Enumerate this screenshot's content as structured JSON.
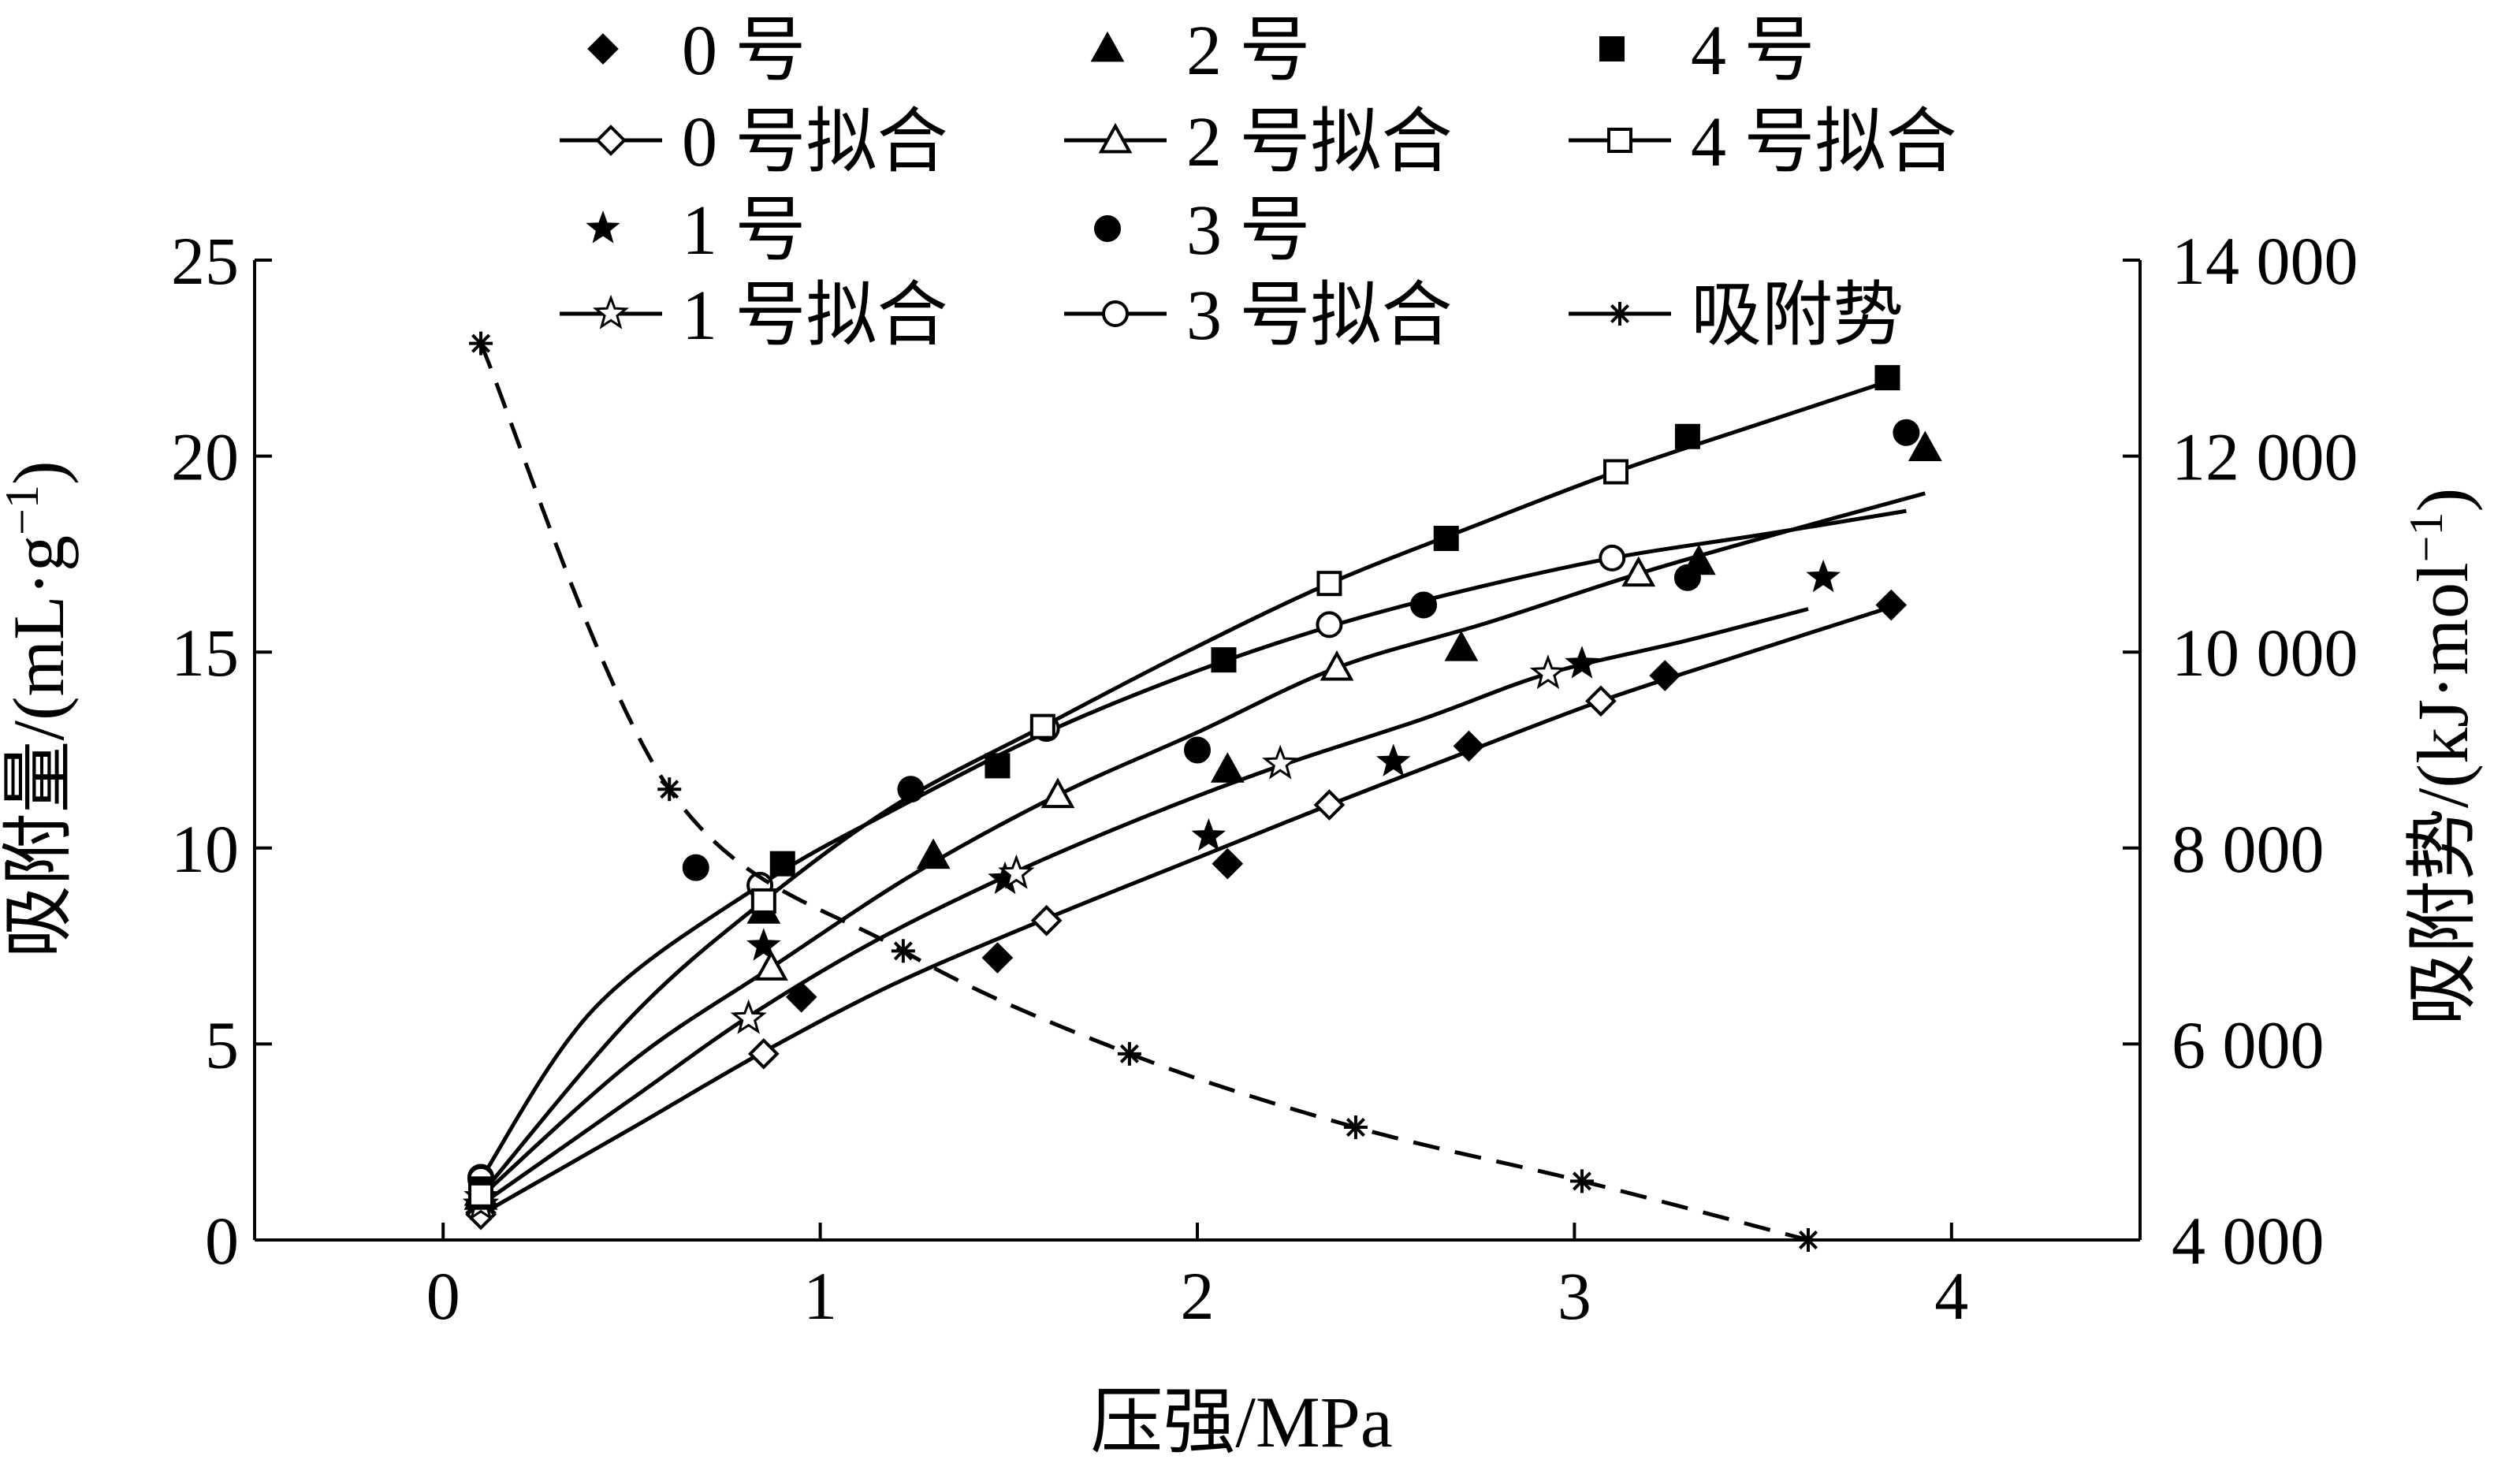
{
  "chart_data": {
    "type": "scatter",
    "xlabel": "压强/MPa",
    "ylabel_left": "吸附量/(mL·g⁻¹)",
    "ylabel_left_base": "吸附量/(mL·g",
    "ylabel_left_sup": "−1",
    "ylabel_left_end": ")",
    "ylabel_right": "吸附势/(kJ·mol⁻¹)",
    "ylabel_right_base": "吸附势/(kJ·mol",
    "ylabel_right_sup": "−1",
    "ylabel_right_end": ")",
    "xlim": [
      -0.5,
      4.5
    ],
    "ylim_left": [
      0,
      25
    ],
    "ylim_right": [
      4000,
      14000
    ],
    "x_ticks": [
      0,
      1,
      2,
      3,
      4
    ],
    "x_tick_labels": [
      "0",
      "1",
      "2",
      "3",
      "4"
    ],
    "y_left_ticks": [
      0,
      5,
      10,
      15,
      20,
      25
    ],
    "y_left_tick_labels": [
      "0",
      "5",
      "10",
      "15",
      "20",
      "25"
    ],
    "y_right_ticks": [
      4000,
      6000,
      8000,
      10000,
      12000,
      14000
    ],
    "y_right_tick_labels": [
      "4 000",
      "6 000",
      "8 000",
      "10 000",
      "12 000",
      "14 000"
    ],
    "grid": false,
    "legend_position": "top",
    "series": [
      {
        "name": "0 号",
        "kind": "points",
        "marker": "diamond-filled",
        "points": [
          [
            0.1,
            0.7
          ],
          [
            0.95,
            6.2
          ],
          [
            1.47,
            7.2
          ],
          [
            2.08,
            9.6
          ],
          [
            2.72,
            12.6
          ],
          [
            3.24,
            14.4
          ],
          [
            3.84,
            16.2
          ]
        ]
      },
      {
        "name": "0 号拟合",
        "kind": "fit",
        "marker": "diamond-open",
        "curve": [
          [
            0.1,
            0.65
          ],
          [
            0.5,
            2.85
          ],
          [
            0.85,
            4.8
          ],
          [
            1.2,
            6.55
          ],
          [
            1.6,
            8.2
          ],
          [
            2.0,
            9.75
          ],
          [
            2.35,
            11.1
          ],
          [
            2.7,
            12.4
          ],
          [
            3.07,
            13.75
          ],
          [
            3.45,
            14.95
          ],
          [
            3.84,
            16.15
          ]
        ],
        "markers": [
          [
            0.1,
            0.65
          ],
          [
            0.85,
            4.75
          ],
          [
            1.6,
            8.15
          ],
          [
            2.35,
            11.1
          ],
          [
            3.07,
            13.75
          ]
        ]
      },
      {
        "name": "1 号",
        "kind": "points",
        "marker": "star-filled",
        "points": [
          [
            0.1,
            1.1
          ],
          [
            0.85,
            7.5
          ],
          [
            1.49,
            9.2
          ],
          [
            2.03,
            10.3
          ],
          [
            2.52,
            12.2
          ],
          [
            3.02,
            14.7
          ],
          [
            3.66,
            16.9
          ]
        ]
      },
      {
        "name": "1 号拟合",
        "kind": "fit",
        "marker": "star-open",
        "curve": [
          [
            0.1,
            0.9
          ],
          [
            0.5,
            3.6
          ],
          [
            0.81,
            5.7
          ],
          [
            1.15,
            7.65
          ],
          [
            1.52,
            9.4
          ],
          [
            1.9,
            10.95
          ],
          [
            2.22,
            12.1
          ],
          [
            2.6,
            13.3
          ],
          [
            2.93,
            14.45
          ],
          [
            3.3,
            15.3
          ],
          [
            3.62,
            16.1
          ]
        ],
        "markers": [
          [
            0.1,
            0.9
          ],
          [
            0.81,
            5.65
          ],
          [
            1.52,
            9.35
          ],
          [
            2.22,
            12.15
          ],
          [
            2.93,
            14.45
          ]
        ]
      },
      {
        "name": "2 号",
        "kind": "points",
        "marker": "triangle-filled",
        "points": [
          [
            0.1,
            1.2
          ],
          [
            0.85,
            8.4
          ],
          [
            1.3,
            9.8
          ],
          [
            2.08,
            12.0
          ],
          [
            2.7,
            15.1
          ],
          [
            3.33,
            17.3
          ],
          [
            3.93,
            20.2
          ]
        ]
      },
      {
        "name": "2 号拟合",
        "kind": "fit",
        "marker": "triangle-open",
        "curve": [
          [
            0.1,
            1.1
          ],
          [
            0.5,
            4.55
          ],
          [
            0.87,
            6.95
          ],
          [
            1.25,
            9.35
          ],
          [
            1.63,
            11.35
          ],
          [
            2.0,
            12.95
          ],
          [
            2.37,
            14.6
          ],
          [
            2.77,
            15.75
          ],
          [
            3.17,
            17.0
          ],
          [
            3.55,
            18.05
          ],
          [
            3.93,
            19.05
          ]
        ],
        "markers": [
          [
            0.1,
            1.1
          ],
          [
            0.87,
            6.95
          ],
          [
            1.63,
            11.35
          ],
          [
            2.37,
            14.6
          ],
          [
            3.17,
            17.0
          ]
        ]
      },
      {
        "name": "3 号",
        "kind": "points",
        "marker": "circle-filled",
        "points": [
          [
            0.1,
            1.6
          ],
          [
            0.67,
            9.5
          ],
          [
            1.24,
            11.5
          ],
          [
            2.0,
            12.5
          ],
          [
            2.6,
            16.2
          ],
          [
            3.3,
            16.9
          ],
          [
            3.88,
            20.6
          ]
        ]
      },
      {
        "name": "3 号拟合",
        "kind": "fit",
        "marker": "circle-open",
        "curve": [
          [
            0.1,
            1.55
          ],
          [
            0.4,
            5.9
          ],
          [
            0.84,
            9.05
          ],
          [
            1.2,
            11.0
          ],
          [
            1.6,
            12.95
          ],
          [
            1.98,
            14.45
          ],
          [
            2.35,
            15.65
          ],
          [
            2.7,
            16.55
          ],
          [
            3.1,
            17.4
          ],
          [
            3.5,
            18.0
          ],
          [
            3.88,
            18.6
          ]
        ],
        "markers": [
          [
            0.1,
            1.55
          ],
          [
            0.84,
            9.05
          ],
          [
            1.6,
            13.05
          ],
          [
            2.35,
            15.7
          ],
          [
            3.1,
            17.4
          ]
        ]
      },
      {
        "name": "4 号",
        "kind": "points",
        "marker": "square-filled",
        "points": [
          [
            0.1,
            1.3
          ],
          [
            0.9,
            9.6
          ],
          [
            1.47,
            12.1
          ],
          [
            2.07,
            14.8
          ],
          [
            2.66,
            17.9
          ],
          [
            3.3,
            20.5
          ],
          [
            3.83,
            22.0
          ]
        ]
      },
      {
        "name": "4 号拟合",
        "kind": "fit",
        "marker": "square-open",
        "curve": [
          [
            0.1,
            1.15
          ],
          [
            0.5,
            5.7
          ],
          [
            0.85,
            8.65
          ],
          [
            1.2,
            11.1
          ],
          [
            1.59,
            13.1
          ],
          [
            1.97,
            15.0
          ],
          [
            2.35,
            16.75
          ],
          [
            2.73,
            18.2
          ],
          [
            3.11,
            19.6
          ],
          [
            3.5,
            20.85
          ],
          [
            3.83,
            21.9
          ]
        ],
        "markers": [
          [
            0.1,
            1.15
          ],
          [
            0.85,
            8.65
          ],
          [
            1.59,
            13.1
          ],
          [
            2.35,
            16.75
          ],
          [
            3.11,
            19.6
          ]
        ]
      },
      {
        "name": "吸附势",
        "kind": "dashed",
        "axis": "right",
        "marker": "asterisk",
        "points": [
          [
            0.1,
            13150
          ],
          [
            0.6,
            8600
          ],
          [
            1.22,
            6950
          ],
          [
            1.82,
            5900
          ],
          [
            2.42,
            5150
          ],
          [
            3.02,
            4600
          ],
          [
            3.62,
            4000
          ]
        ]
      }
    ],
    "legend_layout": [
      [
        "0 号",
        "2 号",
        "4 号"
      ],
      [
        "0 号拟合",
        "2 号拟合",
        "4 号拟合"
      ],
      [
        "1 号",
        "3 号"
      ],
      [
        "1 号拟合",
        "3 号拟合",
        "吸附势"
      ]
    ]
  }
}
